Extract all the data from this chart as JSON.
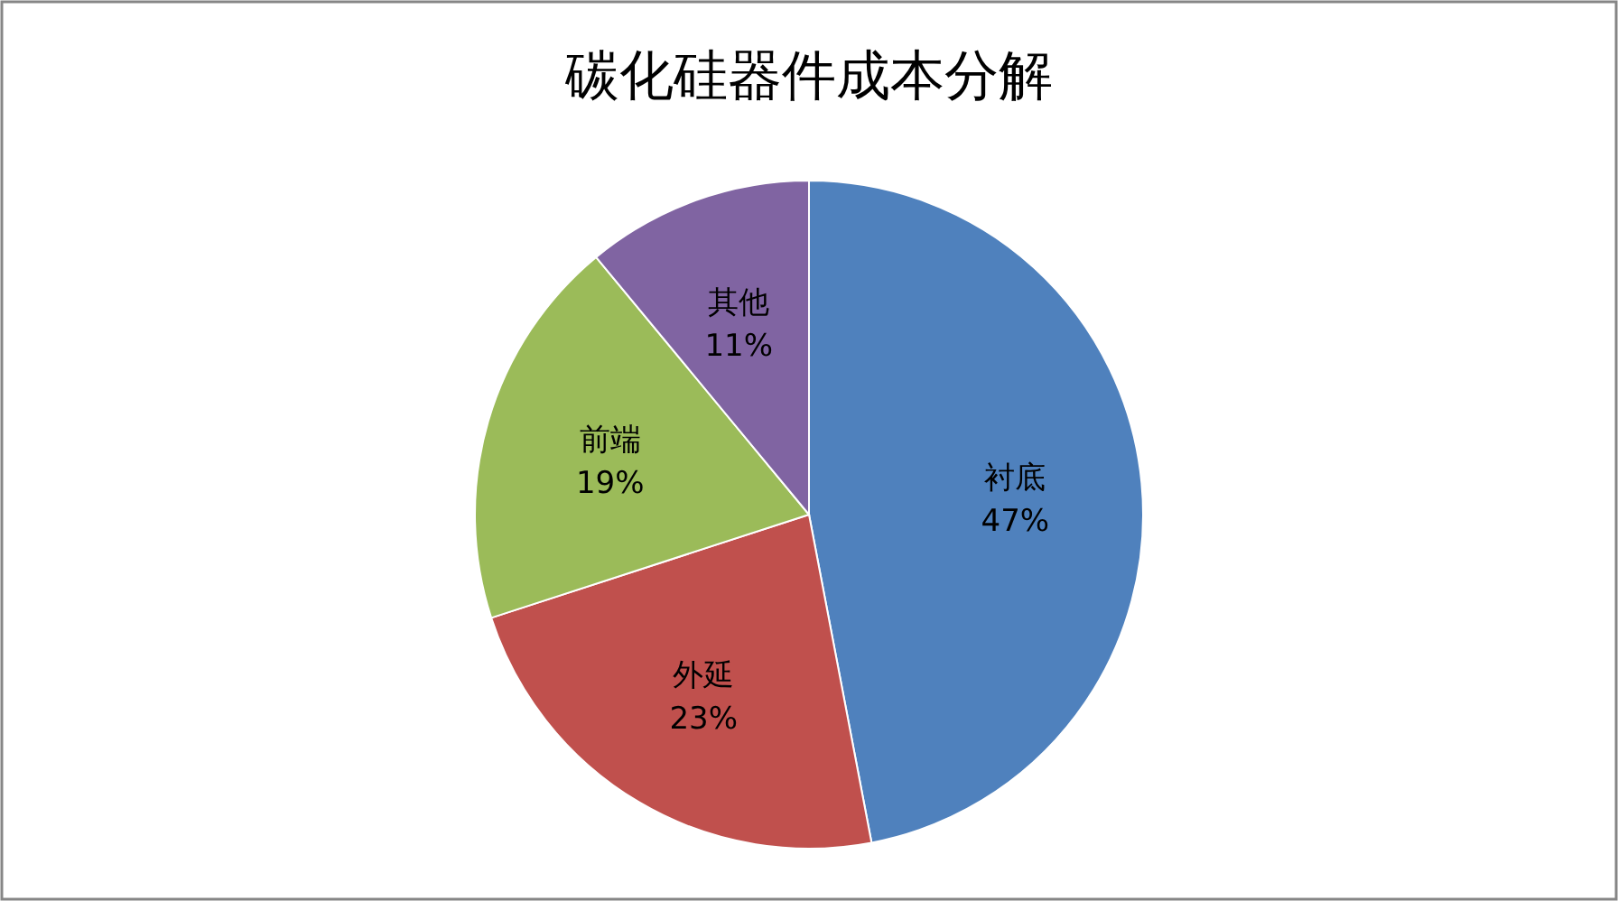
{
  "chart_data": {
    "type": "pie",
    "title": "碳化硅器件成本分解",
    "categories": [
      "衬底",
      "外延",
      "前端",
      "其他"
    ],
    "values": [
      47,
      23,
      19,
      11
    ],
    "colors": [
      "#4f81bd",
      "#c0504d",
      "#9bbb59",
      "#8064a2"
    ],
    "value_labels": [
      "47%",
      "23%",
      "19%",
      "11%"
    ]
  }
}
